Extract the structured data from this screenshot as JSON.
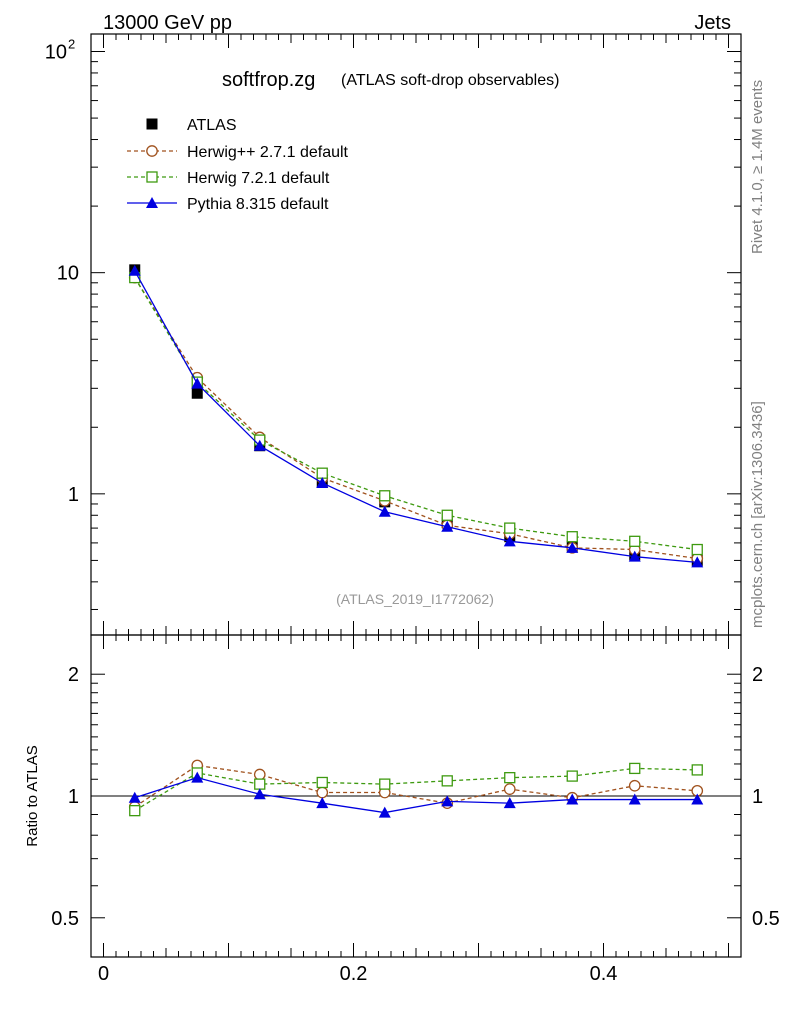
{
  "header": {
    "left": "13000 GeV pp",
    "right": "Jets"
  },
  "side_labels": {
    "rivet": "Rivet 4.1.0, ≥ 1.4M events",
    "mcplots": "mcplots.cern.ch [arXiv:1306.3436]"
  },
  "colors": {
    "atlas": "#000000",
    "herwigpp": "#a0521e",
    "herwig7": "#3e9a10",
    "pythia": "#0000e0"
  },
  "chart_data": [
    {
      "type": "line",
      "panel": "main",
      "title": "softfrop.zg",
      "subtitle": "(ATLAS soft-drop observables)",
      "analysis_label": "(ATLAS_2019_I1772062)",
      "yscale": "log",
      "ylim": [
        0.23,
        120
      ],
      "xlim": [
        -0.01,
        0.51
      ],
      "ytick_labels": [
        {
          "value": 100,
          "base": "10",
          "exp": "2"
        },
        {
          "value": 10,
          "base": "10",
          "exp": ""
        },
        {
          "value": 1,
          "base": "1",
          "exp": ""
        }
      ],
      "legend_position": "top-left",
      "x": [
        0.025,
        0.075,
        0.125,
        0.175,
        0.225,
        0.275,
        0.325,
        0.375,
        0.425,
        0.475
      ],
      "series": [
        {
          "key": "atlas",
          "name": "ATLAS",
          "marker": "square-filled",
          "line": "none",
          "values": [
            10.3,
            2.85,
            1.65,
            1.13,
            0.92,
            0.74,
            0.64,
            0.58,
            0.53,
            0.5
          ]
        },
        {
          "key": "herwigpp",
          "name": "Herwig++ 2.7.1 default",
          "marker": "circle-open",
          "line": "dashed",
          "values": [
            9.5,
            3.35,
            1.8,
            1.18,
            0.93,
            0.72,
            0.66,
            0.57,
            0.56,
            0.51
          ]
        },
        {
          "key": "herwig7",
          "name": "Herwig 7.2.1 default",
          "marker": "square-open",
          "line": "dashed",
          "values": [
            9.5,
            3.2,
            1.75,
            1.24,
            0.98,
            0.8,
            0.7,
            0.64,
            0.61,
            0.56
          ]
        },
        {
          "key": "pythia",
          "name": "Pythia 8.315 default",
          "marker": "triangle-filled",
          "line": "solid",
          "values": [
            10.2,
            3.15,
            1.65,
            1.12,
            0.83,
            0.71,
            0.61,
            0.57,
            0.52,
            0.49
          ]
        }
      ]
    },
    {
      "type": "line",
      "panel": "ratio",
      "ylabel": "Ratio to ATLAS",
      "yscale": "log",
      "ylim": [
        0.4,
        2.5
      ],
      "xlim": [
        -0.01,
        0.51
      ],
      "ytick_labels": [
        {
          "value": 2,
          "label": "2"
        },
        {
          "value": 1,
          "label": "1"
        },
        {
          "value": 0.5,
          "label": "0.5"
        }
      ],
      "xtick_labels": [
        {
          "value": 0,
          "label": "0"
        },
        {
          "value": 0.2,
          "label": "0.2"
        },
        {
          "value": 0.4,
          "label": "0.4"
        }
      ],
      "x": [
        0.025,
        0.075,
        0.125,
        0.175,
        0.225,
        0.275,
        0.325,
        0.375,
        0.425,
        0.475
      ],
      "series": [
        {
          "key": "herwigpp",
          "name": "Herwig++ 2.7.1 default",
          "marker": "circle-open",
          "line": "dashed",
          "values": [
            0.94,
            1.19,
            1.13,
            1.02,
            1.02,
            0.96,
            1.04,
            0.99,
            1.06,
            1.03
          ]
        },
        {
          "key": "herwig7",
          "name": "Herwig 7.2.1 default",
          "marker": "square-open",
          "line": "dashed",
          "values": [
            0.92,
            1.14,
            1.07,
            1.08,
            1.07,
            1.09,
            1.11,
            1.12,
            1.17,
            1.16
          ]
        },
        {
          "key": "pythia",
          "name": "Pythia 8.315 default",
          "marker": "triangle-filled",
          "line": "solid",
          "values": [
            0.99,
            1.11,
            1.01,
            0.96,
            0.91,
            0.97,
            0.96,
            0.98,
            0.98,
            0.98
          ]
        }
      ]
    }
  ]
}
